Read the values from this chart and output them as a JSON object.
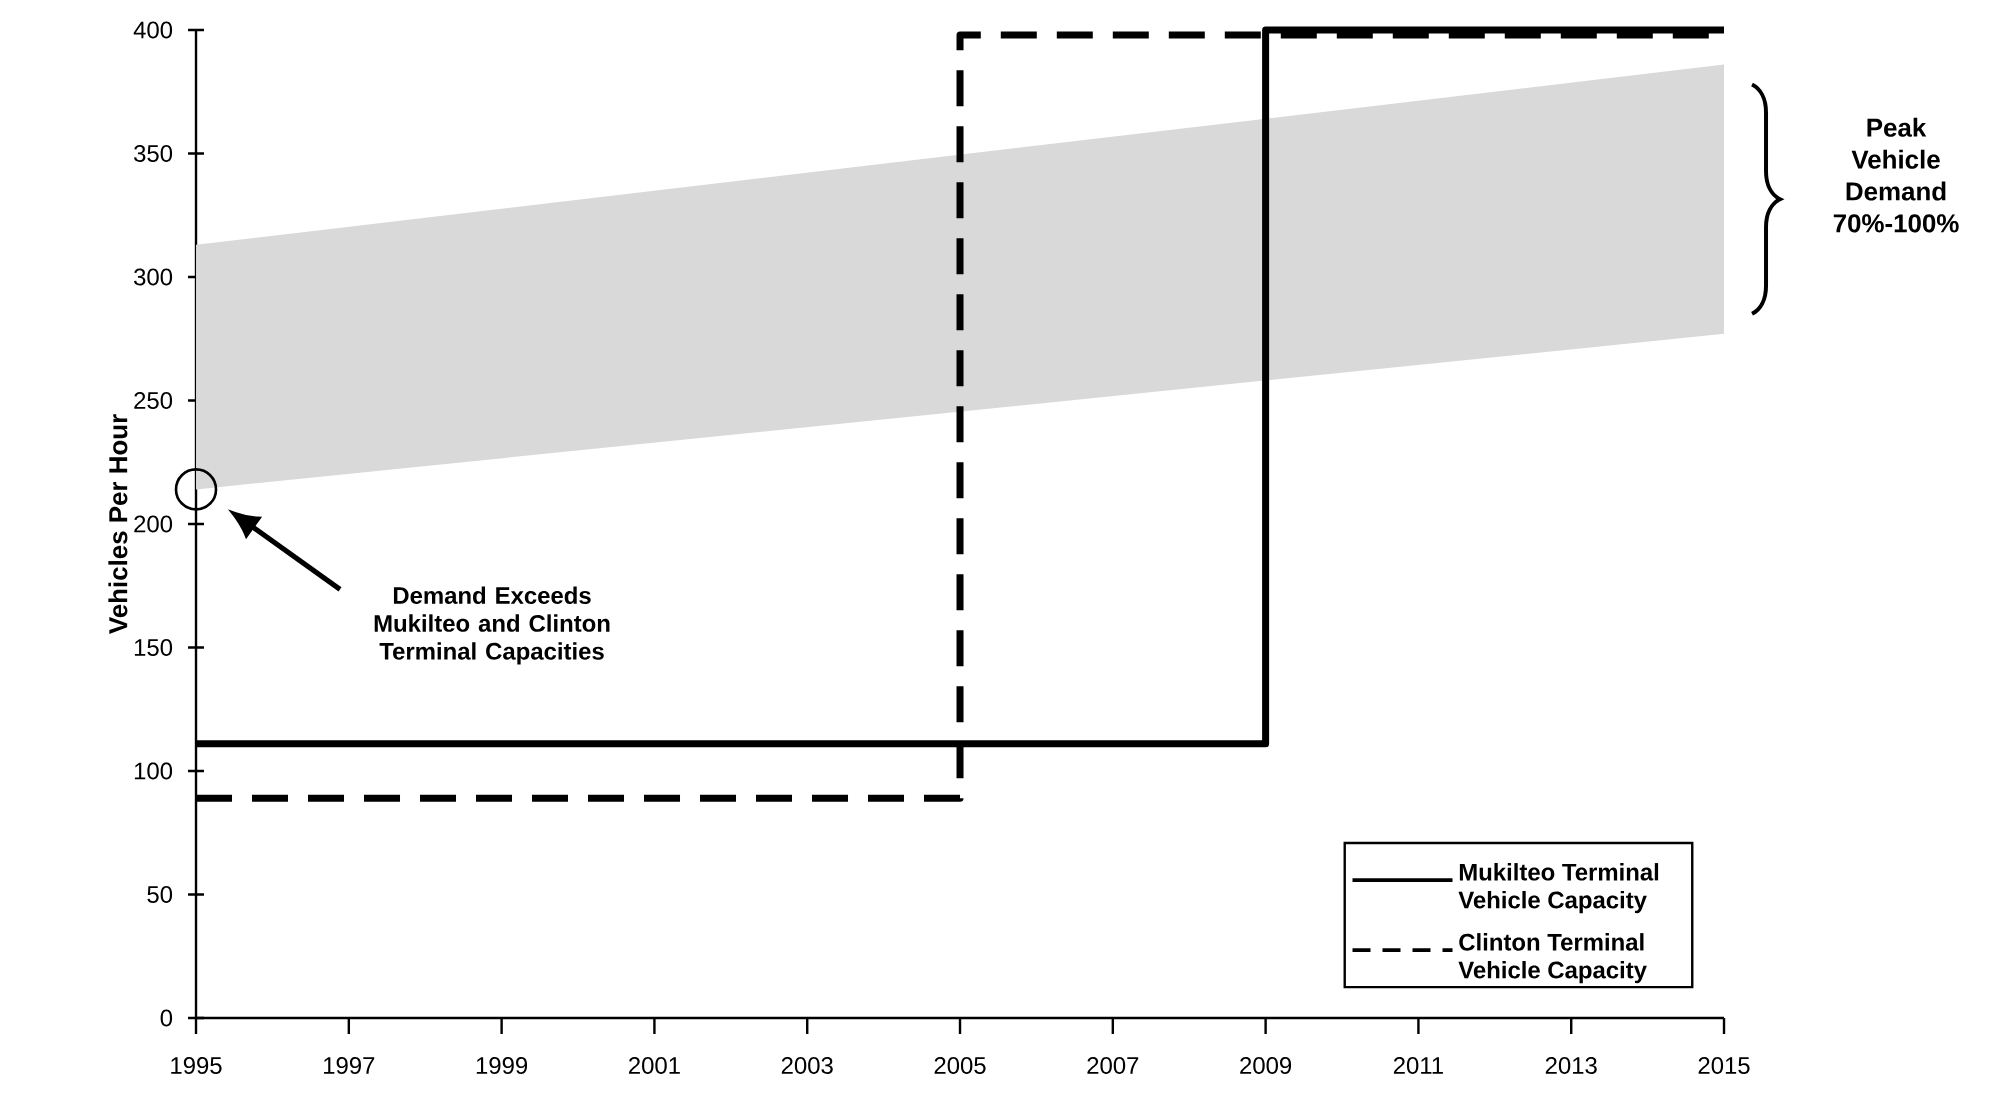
{
  "chart_data": {
    "type": "step",
    "ylabel": "Vehicles Per Hour",
    "xlim": [
      1995,
      2015
    ],
    "xticks": [
      1995,
      1997,
      1999,
      2001,
      2003,
      2005,
      2007,
      2009,
      2011,
      2013,
      2015
    ],
    "ylim": [
      0,
      400
    ],
    "yticks": [
      0,
      50,
      100,
      150,
      200,
      250,
      300,
      350,
      400
    ],
    "legend": "bottom right",
    "series": [
      {
        "type": "area",
        "color": "#d9d9d9",
        "x": [
          1995,
          2015
        ],
        "values": [
          null,
          null
        ],
        "lower": [
          214,
          277
        ],
        "upper": [
          313,
          386
        ]
      },
      {
        "name": "Mukilteo Terminal Vehicle Capacity",
        "color": "#000000",
        "line_style": "solid",
        "x": [
          1995,
          2009,
          2015
        ],
        "values": [
          111,
          400,
          400
        ]
      },
      {
        "name": "Clinton Terminal Vehicle Capacity",
        "color": "#000000",
        "line_style": "dashed",
        "x": [
          1995,
          2005,
          2015
        ],
        "values": [
          89,
          398,
          398
        ]
      }
    ],
    "annotations": [
      "Demand Exceeds Mukilteo and Clinton Terminal Capacities",
      "Peak Vehicle Demand 70%-100%"
    ]
  }
}
